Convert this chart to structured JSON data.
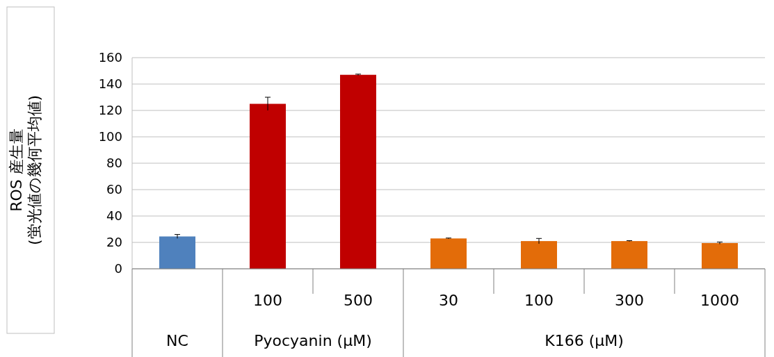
{
  "chart_data": {
    "type": "bar",
    "ylabel": "ROS 産生量\n(蛍光値の幾何平均値)",
    "categories": [
      null,
      "100",
      "500",
      "30",
      "100",
      "300",
      "1000"
    ],
    "values": [
      24.5,
      125,
      147,
      23,
      21,
      21,
      19.5
    ],
    "errors": [
      1.5,
      5,
      0.5,
      0.3,
      2,
      0.3,
      0.8
    ],
    "colors": [
      "#4f81bd",
      "#c00000",
      "#c00000",
      "#e36c09",
      "#e36c09",
      "#e36c09",
      "#e36c09"
    ],
    "annotations": [
      "NC",
      "Pyocyanin (μM)",
      "K166 (μM)"
    ],
    "ylim": [
      0,
      160
    ],
    "yticks": [
      0,
      20,
      40,
      60,
      80,
      100,
      120,
      140,
      160
    ],
    "grid": "y"
  }
}
